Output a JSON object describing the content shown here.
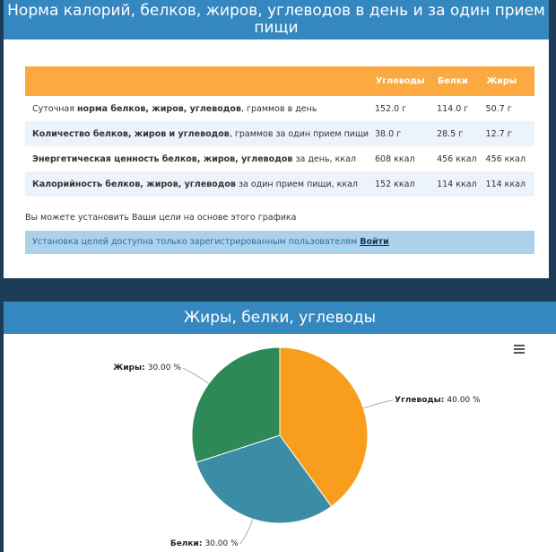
{
  "header": {
    "title": "Норма калорий, белков, жиров, углеводов в день и за один прием пищи"
  },
  "table": {
    "columns": [
      "Углеводы",
      "Белки",
      "Жиры"
    ],
    "rows": [
      {
        "label": [
          {
            "text": "Суточная ",
            "bold": false
          },
          {
            "text": "норма белков, жиров, углеводов",
            "bold": true
          },
          {
            "text": ", граммов в день",
            "bold": false
          }
        ],
        "cells": [
          "152.0 г",
          "114.0 г",
          "50.7 г"
        ]
      },
      {
        "label": [
          {
            "text": "Количество белков, жиров и углеводов",
            "bold": true
          },
          {
            "text": ", граммов за один прием пищи",
            "bold": false
          }
        ],
        "cells": [
          "38.0 г",
          "28.5 г",
          "12.7 г"
        ]
      },
      {
        "label": [
          {
            "text": "Энергетическая ценность белков, жиров, углеводов",
            "bold": true
          },
          {
            "text": " за день, ккал",
            "bold": false
          }
        ],
        "cells": [
          "608 ккал",
          "456 ккал",
          "456 ккал"
        ]
      },
      {
        "label": [
          {
            "text": "Калорийность белков, жиров, углеводов",
            "bold": true
          },
          {
            "text": " за один прием пищи, ккал",
            "bold": false
          }
        ],
        "cells": [
          "152 ккал",
          "114 ккал",
          "114 ккал"
        ]
      }
    ]
  },
  "note": "Вы можете установить Ваши цели на основе этого графика",
  "alert": {
    "text": "Установка целей доступна только зарегистрированным пользователям",
    "link": "Войти"
  },
  "chart_data": {
    "type": "pie",
    "title": "Жиры, белки, углеводы",
    "categories": [
      "Углеводы",
      "Белки",
      "Жиры"
    ],
    "values": [
      40,
      30,
      30
    ],
    "value_labels": [
      "40.00 %",
      "30.00 %",
      "30.00 %"
    ],
    "colors": [
      "#f89d1c",
      "#3a8da4",
      "#2d8a57"
    ]
  }
}
